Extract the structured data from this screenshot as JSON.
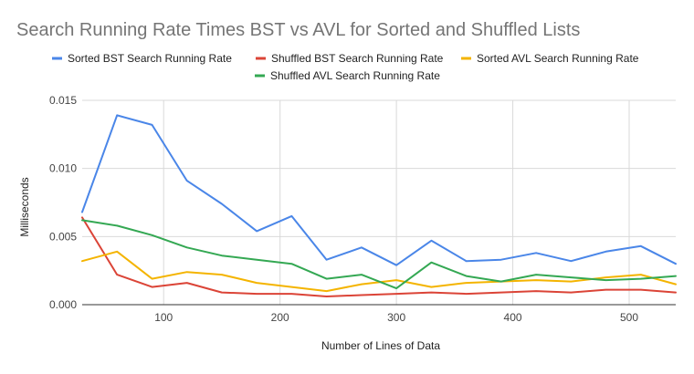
{
  "chart_data": {
    "type": "line",
    "title": "Search Running Rate Times BST vs AVL for Sorted and Shuffled Lists",
    "xlabel": "Number of Lines of Data",
    "ylabel": "Milliseconds",
    "xlim": [
      30,
      540
    ],
    "ylim": [
      0,
      0.015
    ],
    "x_ticks": [
      100,
      200,
      300,
      400,
      500
    ],
    "x_tick_labels": [
      "100",
      "200",
      "300",
      "400",
      "500"
    ],
    "y_ticks": [
      0,
      0.005,
      0.01,
      0.015
    ],
    "y_tick_labels": [
      "0.000",
      "0.005",
      "0.010",
      "0.015"
    ],
    "grid": true,
    "legend_position": "top",
    "x": [
      30,
      60,
      90,
      120,
      150,
      180,
      210,
      240,
      270,
      300,
      330,
      360,
      390,
      420,
      450,
      480,
      510,
      540
    ],
    "series": [
      {
        "name": "Sorted BST Search Running Rate",
        "color": "#4a86e8",
        "values": [
          0.0068,
          0.0139,
          0.0132,
          0.0091,
          0.0074,
          0.0054,
          0.0065,
          0.0033,
          0.0042,
          0.0029,
          0.0047,
          0.0032,
          0.0033,
          0.0038,
          0.0032,
          0.0039,
          0.0043,
          0.003
        ]
      },
      {
        "name": "Shuffled BST Search Running Rate",
        "color": "#db4437",
        "values": [
          0.0064,
          0.0022,
          0.0013,
          0.0016,
          0.0009,
          0.0008,
          0.0008,
          0.0006,
          0.0007,
          0.0008,
          0.0009,
          0.0008,
          0.0009,
          0.001,
          0.0009,
          0.0011,
          0.0011,
          0.0009
        ]
      },
      {
        "name": "Sorted AVL Search Running Rate",
        "color": "#f4b400",
        "values": [
          0.0032,
          0.0039,
          0.0019,
          0.0024,
          0.0022,
          0.0016,
          0.0013,
          0.001,
          0.0015,
          0.0018,
          0.0013,
          0.0016,
          0.0017,
          0.0018,
          0.0017,
          0.002,
          0.0022,
          0.0015
        ]
      },
      {
        "name": "Shuffled AVL Search Running Rate",
        "color": "#34a853",
        "values": [
          0.0062,
          0.0058,
          0.0051,
          0.0042,
          0.0036,
          0.0033,
          0.003,
          0.0019,
          0.0022,
          0.0012,
          0.0031,
          0.0021,
          0.0017,
          0.0022,
          0.002,
          0.0018,
          0.0019,
          0.0021
        ]
      }
    ]
  }
}
